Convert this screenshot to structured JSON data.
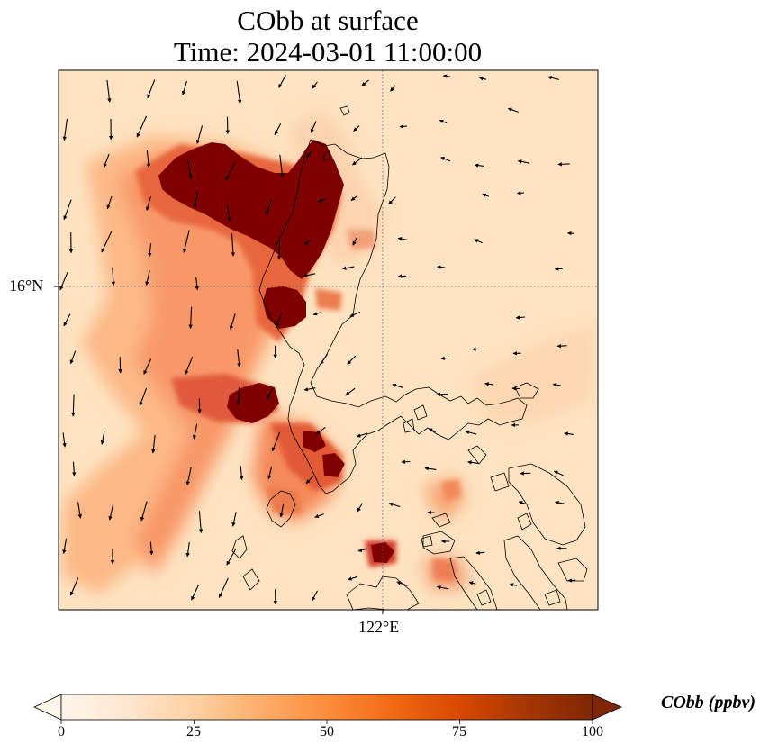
{
  "title": {
    "line1": "CObb at surface",
    "line2": "Time: 2024-03-01 11:00:00"
  },
  "axes": {
    "lat_label": "16°N",
    "lon_label": "122°E"
  },
  "colorbar": {
    "label": "CObb (ppbv)",
    "ticks": [
      "0",
      "25",
      "50",
      "75",
      "100"
    ],
    "min": 0,
    "max": 100,
    "extend": "both",
    "colormap": [
      "#fff5eb",
      "#fee6ce",
      "#fdd0a2",
      "#fdae6b",
      "#fd8d3c",
      "#f16913",
      "#d94801",
      "#a63603",
      "#7f2704"
    ]
  },
  "colors": {
    "background_field": "#fde3c1",
    "max_plume": "#7f0000"
  }
}
